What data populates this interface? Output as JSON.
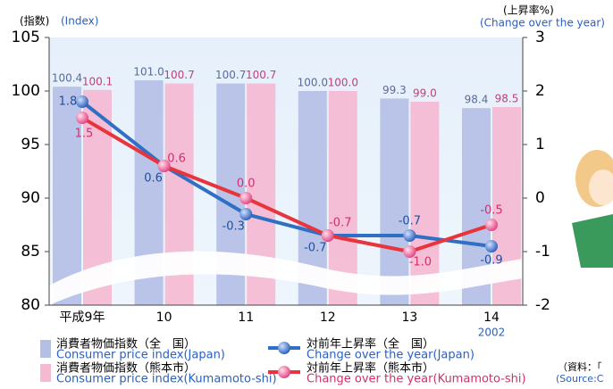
{
  "chart_data": {
    "type": "bar_line",
    "y_axis_label": "(指数)",
    "y_axis_label_en": "(Index)",
    "y2_axis_label": "(上昇率%)",
    "y2_axis_label_en": "(Change over the year)",
    "categories": [
      "平成9年",
      "10",
      "11",
      "12",
      "13",
      "14"
    ],
    "x_annotation": "2002",
    "ylim": [
      80,
      105
    ],
    "yticks": [
      80,
      85,
      90,
      95,
      100,
      105
    ],
    "y2lim": [
      -2,
      3
    ],
    "y2ticks": [
      -2,
      -1,
      0,
      1,
      2,
      3
    ],
    "series": [
      {
        "name": "消費者物価指数（全　国）",
        "name_en": "Consumer price index(Japan)",
        "kind": "bar",
        "color": "#b4bfe6",
        "values": [
          100.4,
          101.0,
          100.7,
          100.0,
          99.3,
          98.4
        ],
        "value_labels": [
          "100.4",
          "101.0",
          "100.7",
          "100.0",
          "99.3",
          "98.4"
        ]
      },
      {
        "name": "消費者物価指数（熊本市）",
        "name_en": "Consumer price index(Kumamoto-shi)",
        "kind": "bar",
        "color": "#f5b9d2",
        "values": [
          100.1,
          100.7,
          100.7,
          100.0,
          99.0,
          98.5
        ],
        "value_labels": [
          "100.1",
          "100.7",
          "100.7",
          "100.0",
          "99.0",
          "98.5"
        ]
      },
      {
        "name": "対前年上昇率（全　国）",
        "name_en": "Change over the year(Japan)",
        "kind": "line",
        "axis": "y2",
        "color": "#2f6fc4",
        "values": [
          1.8,
          0.6,
          -0.3,
          -0.7,
          -0.7,
          -0.9
        ],
        "value_labels": [
          "1.8",
          "0.6",
          "-0.3",
          "-0.7",
          "-0.7",
          "-0.9"
        ]
      },
      {
        "name": "対前年上昇率（熊本市）",
        "name_en": "Change over the year(Kumamoto-shi)",
        "kind": "line",
        "axis": "y2",
        "color": "#e8343c",
        "values": [
          1.5,
          0.6,
          0.0,
          -0.7,
          -1.0,
          -0.5
        ],
        "value_labels": [
          "1.5",
          "0.6",
          "0.0",
          "-0.7",
          "-1.0",
          "-0.5"
        ]
      }
    ],
    "source": "（資料：「",
    "source_en": "(Source:C"
  }
}
